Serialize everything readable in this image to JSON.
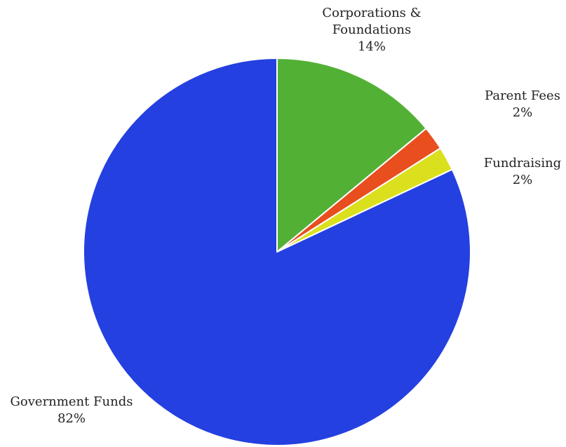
{
  "chart_data": {
    "type": "pie",
    "title": "",
    "slices": [
      {
        "name": "Corporations & Foundations",
        "label_lines": [
          "Corporations &",
          "Foundations"
        ],
        "value": 14,
        "value_label": "14%",
        "color": "#52b135"
      },
      {
        "name": "Parent Fees",
        "label_lines": [
          "Parent Fees"
        ],
        "value": 2,
        "value_label": "2%",
        "color": "#e94e1f"
      },
      {
        "name": "Fundraising",
        "label_lines": [
          "Fundraising"
        ],
        "value": 2,
        "value_label": "2%",
        "color": "#dbe01e"
      },
      {
        "name": "Government Funds",
        "label_lines": [
          "Government Funds"
        ],
        "value": 82,
        "value_label": "82%",
        "color": "#2440e0"
      }
    ]
  }
}
